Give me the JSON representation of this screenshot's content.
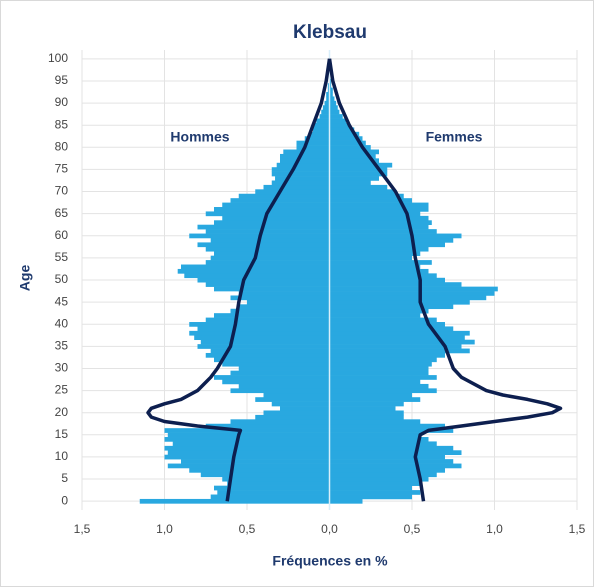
{
  "chart_data": {
    "type": "bar",
    "title": "Klebsau",
    "x_label": "Fréquences en %",
    "y_label": "Age",
    "ages": [
      0,
      1,
      2,
      3,
      4,
      5,
      6,
      7,
      8,
      9,
      10,
      11,
      12,
      13,
      14,
      15,
      16,
      17,
      18,
      19,
      20,
      21,
      22,
      23,
      24,
      25,
      26,
      27,
      28,
      29,
      30,
      31,
      32,
      33,
      34,
      35,
      36,
      37,
      38,
      39,
      40,
      41,
      42,
      43,
      44,
      45,
      46,
      47,
      48,
      49,
      50,
      51,
      52,
      53,
      54,
      55,
      56,
      57,
      58,
      59,
      60,
      61,
      62,
      63,
      64,
      65,
      66,
      67,
      68,
      69,
      70,
      71,
      72,
      73,
      74,
      75,
      76,
      77,
      78,
      79,
      80,
      81,
      82,
      83,
      84,
      85,
      86,
      87,
      88,
      89,
      90,
      91,
      92,
      93,
      94,
      95,
      96,
      97,
      98,
      99,
      100
    ],
    "series": [
      {
        "name": "Hommes",
        "type": "bar",
        "color": "#29a8e0",
        "values": [
          -1.15,
          -0.72,
          -0.68,
          -0.7,
          -0.62,
          -0.65,
          -0.78,
          -0.85,
          -0.98,
          -0.9,
          -1.0,
          -0.98,
          -1.0,
          -0.95,
          -1.0,
          -0.98,
          -1.0,
          -0.75,
          -0.6,
          -0.45,
          -0.4,
          -0.3,
          -0.35,
          -0.45,
          -0.4,
          -0.6,
          -0.55,
          -0.65,
          -0.7,
          -0.6,
          -0.55,
          -0.65,
          -0.7,
          -0.75,
          -0.72,
          -0.8,
          -0.78,
          -0.82,
          -0.85,
          -0.8,
          -0.85,
          -0.75,
          -0.7,
          -0.6,
          -0.55,
          -0.5,
          -0.6,
          -0.55,
          -0.7,
          -0.75,
          -0.8,
          -0.88,
          -0.92,
          -0.9,
          -0.75,
          -0.72,
          -0.7,
          -0.75,
          -0.8,
          -0.72,
          -0.85,
          -0.75,
          -0.8,
          -0.7,
          -0.65,
          -0.75,
          -0.7,
          -0.65,
          -0.6,
          -0.55,
          -0.45,
          -0.4,
          -0.35,
          -0.33,
          -0.35,
          -0.35,
          -0.32,
          -0.3,
          -0.3,
          -0.28,
          -0.2,
          -0.2,
          -0.15,
          -0.12,
          -0.1,
          -0.1,
          -0.08,
          -0.06,
          -0.05,
          -0.04,
          -0.03,
          -0.02,
          -0.02,
          -0.01,
          -0.01,
          0,
          0,
          0,
          0,
          0,
          0
        ]
      },
      {
        "name": "Femmes",
        "type": "bar",
        "color": "#29a8e0",
        "values": [
          0.2,
          0.5,
          0.55,
          0.5,
          0.55,
          0.6,
          0.65,
          0.7,
          0.8,
          0.75,
          0.7,
          0.8,
          0.75,
          0.65,
          0.6,
          0.55,
          0.75,
          0.7,
          0.55,
          0.45,
          0.45,
          0.4,
          0.45,
          0.55,
          0.5,
          0.65,
          0.6,
          0.55,
          0.65,
          0.6,
          0.6,
          0.62,
          0.65,
          0.7,
          0.85,
          0.8,
          0.88,
          0.82,
          0.85,
          0.75,
          0.7,
          0.65,
          0.55,
          0.6,
          0.75,
          0.85,
          0.95,
          1.0,
          1.02,
          0.8,
          0.7,
          0.65,
          0.6,
          0.55,
          0.62,
          0.5,
          0.55,
          0.6,
          0.7,
          0.75,
          0.8,
          0.65,
          0.6,
          0.62,
          0.6,
          0.55,
          0.6,
          0.6,
          0.5,
          0.45,
          0.4,
          0.35,
          0.25,
          0.3,
          0.35,
          0.35,
          0.38,
          0.3,
          0.28,
          0.3,
          0.25,
          0.22,
          0.2,
          0.18,
          0.15,
          0.12,
          0.1,
          0.08,
          0.06,
          0.05,
          0.04,
          0.03,
          0.02,
          0.02,
          0.01,
          0.01,
          0,
          0,
          0,
          0,
          0
        ]
      },
      {
        "type": "line",
        "color": "#0d1f4f",
        "x": [
          0,
          5,
          10,
          15,
          16,
          17,
          18,
          19,
          20,
          21,
          22,
          23,
          25,
          28,
          30,
          35,
          40,
          45,
          50,
          55,
          60,
          65,
          70,
          75,
          80,
          85,
          90,
          95,
          100
        ],
        "values": [
          -0.62,
          -0.6,
          -0.58,
          -0.55,
          -0.54,
          -0.8,
          -1.0,
          -1.08,
          -1.1,
          -1.08,
          -1.0,
          -0.9,
          -0.8,
          -0.72,
          -0.68,
          -0.6,
          -0.57,
          -0.55,
          -0.52,
          -0.45,
          -0.42,
          -0.38,
          -0.3,
          -0.22,
          -0.15,
          -0.1,
          -0.05,
          -0.02,
          0
        ]
      },
      {
        "type": "line",
        "color": "#0d1f4f",
        "x": [
          0,
          5,
          10,
          15,
          16,
          17,
          18,
          19,
          20,
          21,
          22,
          23,
          24,
          25,
          28,
          30,
          35,
          40,
          45,
          50,
          55,
          60,
          65,
          70,
          75,
          80,
          85,
          90,
          95,
          100
        ],
        "values": [
          0.57,
          0.55,
          0.52,
          0.55,
          0.6,
          0.8,
          1.0,
          1.2,
          1.35,
          1.4,
          1.32,
          1.2,
          1.05,
          0.95,
          0.8,
          0.75,
          0.7,
          0.6,
          0.55,
          0.55,
          0.52,
          0.5,
          0.47,
          0.4,
          0.3,
          0.2,
          0.12,
          0.06,
          0.02,
          0
        ]
      }
    ],
    "xlim": [
      -1.5,
      1.5
    ],
    "xticks": [
      {
        "value": -1.5,
        "label": "1,5"
      },
      {
        "value": -1.0,
        "label": "1,0"
      },
      {
        "value": -0.5,
        "label": "0,5"
      },
      {
        "value": 0,
        "label": "0,0"
      },
      {
        "value": 0.5,
        "label": "0,5"
      },
      {
        "value": 1.0,
        "label": "1,0"
      },
      {
        "value": 1.5,
        "label": "1,5"
      }
    ],
    "ylim": [
      -2,
      102
    ],
    "yticks": [
      0,
      5,
      10,
      15,
      20,
      25,
      30,
      35,
      40,
      45,
      50,
      55,
      60,
      65,
      70,
      75,
      80,
      85,
      90,
      95,
      100
    ],
    "grid": true
  }
}
